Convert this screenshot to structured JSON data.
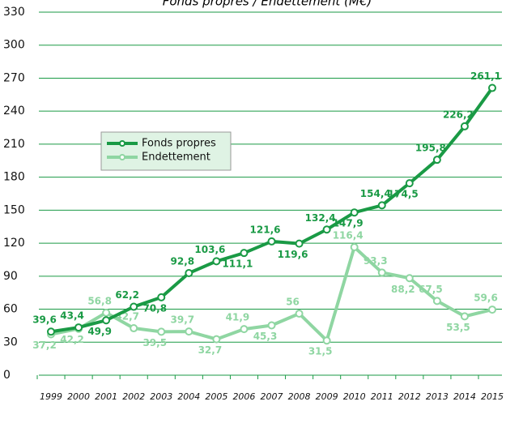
{
  "chart_data": {
    "type": "line",
    "title": "Fonds propres / Endettement (M€)",
    "categories": [
      "1999",
      "2000",
      "2001",
      "2002",
      "2003",
      "2004",
      "2005",
      "2006",
      "2007",
      "2008",
      "2009",
      "2010",
      "2011",
      "2012",
      "2013",
      "2014",
      "2015"
    ],
    "series": [
      {
        "name": "Fonds propres",
        "color": "#1a9a45",
        "values": [
          39.6,
          43.4,
          49.9,
          62.2,
          70.8,
          92.8,
          103.6,
          111.1,
          121.6,
          119.6,
          132.4,
          147.9,
          154.4,
          174.5,
          195.8,
          226.2,
          261.1
        ],
        "value_labels": [
          "39,6",
          "43,4",
          "49,9",
          "62,2",
          "70,8",
          "92,8",
          "103,6",
          "111,1",
          "121,6",
          "119,6",
          "132,4",
          "147,9",
          "154,4",
          "174,5",
          "195,8",
          "226,2",
          "261,1"
        ]
      },
      {
        "name": "Endettement",
        "color": "#8fd6a2",
        "values": [
          37.2,
          42.2,
          56.8,
          42.7,
          39.5,
          39.7,
          32.7,
          41.9,
          45.3,
          56,
          31.5,
          116.4,
          93.3,
          88.2,
          67.5,
          53.5,
          59.6
        ],
        "value_labels": [
          "37,2",
          "42,2",
          "56,8",
          "42,7",
          "39,5",
          "39,7",
          "32,7",
          "41,9",
          "45,3",
          "56",
          "31,5",
          "116,4",
          "93,3",
          "88,2",
          "67,5",
          "53,5",
          "59,6"
        ]
      }
    ],
    "ylim": [
      0,
      330
    ],
    "yticks": [
      0,
      30,
      60,
      90,
      120,
      150,
      180,
      210,
      240,
      270,
      300,
      330
    ],
    "grid": true
  }
}
